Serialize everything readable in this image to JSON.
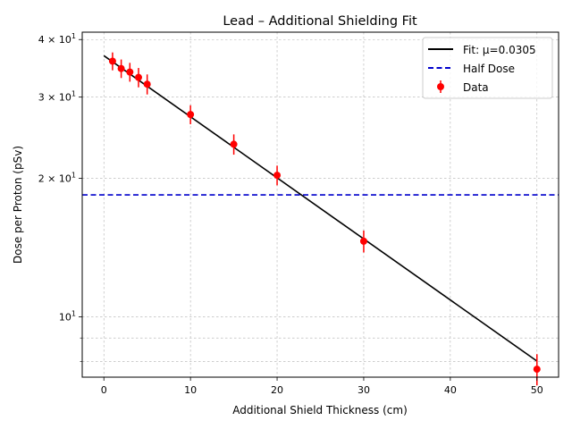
{
  "chart_data": {
    "type": "scatter",
    "title": "Lead – Additional Shielding Fit",
    "xlabel": "Additional Shield Thickness (cm)",
    "ylabel": "Dose per Proton (pSv)",
    "xlim": [
      -2.5,
      52.5
    ],
    "ylim": [
      7.4,
      41.5
    ],
    "yscale": "log",
    "grid": true,
    "legend_position": "top-right",
    "x_ticks": [
      0,
      10,
      20,
      30,
      40,
      50
    ],
    "x_tick_labels": [
      "0",
      "10",
      "20",
      "30",
      "40",
      "50"
    ],
    "y_major_ticks": [
      10,
      20,
      30,
      40
    ],
    "y_major_tick_labels": [
      "10",
      "2 × 10",
      "3 × 10",
      "4 × 10"
    ],
    "y_major_tick_exponents": [
      "1",
      "1",
      "1",
      "1"
    ],
    "y_minor_ticks": [
      8,
      9
    ],
    "series": [
      {
        "name": "Fit: μ=0.0305",
        "kind": "line",
        "color": "#000000",
        "x": [
          0,
          50
        ],
        "y": [
          36.9,
          8.02
        ]
      },
      {
        "name": "Half Dose",
        "kind": "hline",
        "color": "#0000cc",
        "y": 18.4
      },
      {
        "name": "Data",
        "kind": "errorbar",
        "color": "#ff0000",
        "x": [
          1,
          2,
          3,
          4,
          5,
          10,
          15,
          20,
          30,
          50
        ],
        "y": [
          35.9,
          34.6,
          34.0,
          33.1,
          32.0,
          27.5,
          23.7,
          20.3,
          14.6,
          7.7
        ],
        "yerr": [
          1.6,
          1.6,
          1.6,
          1.6,
          1.6,
          1.3,
          1.2,
          1.0,
          0.8,
          0.6
        ]
      }
    ]
  }
}
